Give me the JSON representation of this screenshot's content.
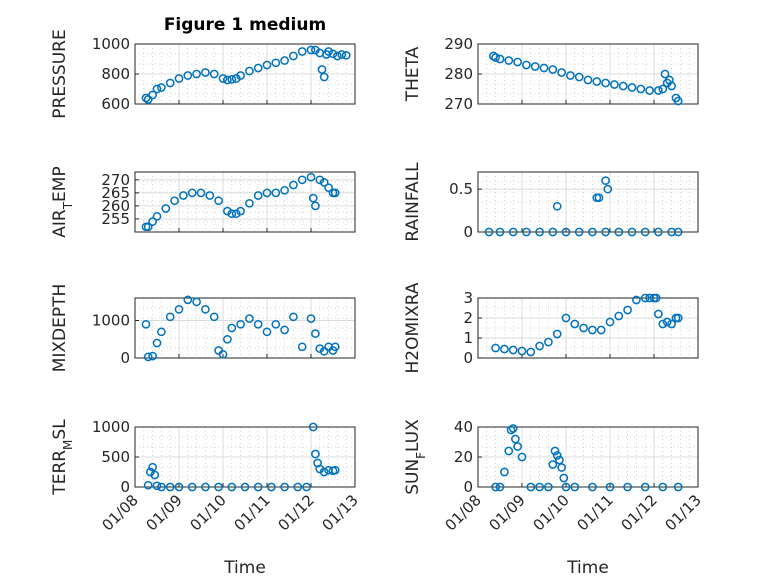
{
  "figure": {
    "title": "Figure 1 medium",
    "xlabel": "Time",
    "x_ticks": [
      "01/08",
      "01/09",
      "01/10",
      "01/11",
      "01/12",
      "01/13"
    ],
    "marker_color": "#0072BD",
    "grid": "on, with minor grid"
  },
  "chart_data": [
    {
      "type": "scatter",
      "ylabel": "PRESSURE",
      "ylim": [
        600,
        1000
      ],
      "y_ticks": [
        "600",
        "800",
        "1000"
      ],
      "series": [
        {
          "x": [
            0.25,
            0.3,
            0.4,
            0.5,
            0.6,
            0.8,
            1.0,
            1.2,
            1.4,
            1.6,
            1.8,
            2.0,
            2.1,
            2.2,
            2.3,
            2.4,
            2.6,
            2.8,
            3.0,
            3.2,
            3.4,
            3.6,
            3.8,
            4.0,
            4.1,
            4.2,
            4.25,
            4.3,
            4.35,
            4.4,
            4.5,
            4.6,
            4.7,
            4.8
          ],
          "y": [
            640,
            630,
            660,
            700,
            710,
            740,
            770,
            790,
            800,
            810,
            800,
            770,
            760,
            765,
            770,
            790,
            820,
            840,
            860,
            875,
            890,
            920,
            950,
            960,
            960,
            940,
            830,
            780,
            930,
            950,
            935,
            920,
            930,
            925
          ]
        }
      ]
    },
    {
      "type": "scatter",
      "ylabel": "THETA",
      "ylim": [
        270,
        290
      ],
      "y_ticks": [
        "270",
        "280",
        "290"
      ],
      "series": [
        {
          "x": [
            0.35,
            0.4,
            0.5,
            0.7,
            0.9,
            1.1,
            1.3,
            1.5,
            1.7,
            1.9,
            2.1,
            2.3,
            2.5,
            2.7,
            2.9,
            3.1,
            3.3,
            3.5,
            3.7,
            3.9,
            4.1,
            4.2,
            4.25,
            4.3,
            4.35,
            4.4,
            4.5,
            4.55
          ],
          "y": [
            286,
            285.5,
            285,
            284.5,
            284,
            283,
            282.5,
            282,
            281.5,
            280.5,
            279.5,
            279,
            278,
            277.5,
            277,
            276.5,
            276,
            275.5,
            275,
            274.5,
            274.5,
            275,
            280,
            277,
            278,
            276,
            272,
            271
          ]
        }
      ]
    },
    {
      "type": "scatter",
      "ylabel": "AIR_TEMP",
      "ylim": [
        250,
        273
      ],
      "y_ticks": [
        "255",
        "260",
        "265",
        "270"
      ],
      "series": [
        {
          "x": [
            0.25,
            0.3,
            0.4,
            0.5,
            0.7,
            0.9,
            1.1,
            1.3,
            1.5,
            1.7,
            1.9,
            2.1,
            2.2,
            2.3,
            2.4,
            2.6,
            2.8,
            3.0,
            3.2,
            3.4,
            3.6,
            3.8,
            4.0,
            4.05,
            4.1,
            4.2,
            4.3,
            4.4,
            4.5,
            4.55
          ],
          "y": [
            252,
            252,
            254,
            256,
            259,
            262,
            264,
            265,
            265,
            264,
            262,
            258,
            257,
            257,
            258,
            261,
            264,
            265,
            265,
            266,
            268,
            270,
            271,
            263,
            260,
            270,
            269,
            267,
            265,
            265
          ]
        }
      ]
    },
    {
      "type": "scatter",
      "ylabel": "RAINFALL",
      "ylim": [
        0,
        0.7
      ],
      "y_ticks": [
        "0",
        "0.5"
      ],
      "series": [
        {
          "x": [
            0.25,
            0.5,
            0.8,
            1.1,
            1.4,
            1.7,
            2.0,
            2.3,
            2.6,
            2.9,
            3.2,
            3.5,
            3.8,
            4.1,
            4.4,
            4.55,
            1.8,
            2.7,
            2.75,
            2.9,
            2.95
          ],
          "y": [
            0,
            0,
            0,
            0,
            0,
            0,
            0,
            0,
            0,
            0,
            0,
            0,
            0,
            0,
            0,
            0,
            0.3,
            0.4,
            0.4,
            0.6,
            0.5
          ]
        }
      ]
    },
    {
      "type": "scatter",
      "ylabel": "MIXDEPTH",
      "ylim": [
        0,
        1600
      ],
      "y_ticks": [
        "0",
        "1000"
      ],
      "series": [
        {
          "x": [
            0.25,
            0.3,
            0.4,
            0.5,
            0.6,
            0.8,
            1.0,
            1.2,
            1.4,
            1.6,
            1.8,
            1.9,
            2.0,
            2.1,
            2.2,
            2.4,
            2.6,
            2.8,
            3.0,
            3.2,
            3.4,
            3.6,
            3.8,
            4.0,
            4.1,
            4.2,
            4.3,
            4.4,
            4.5,
            4.55
          ],
          "y": [
            900,
            30,
            50,
            400,
            700,
            1100,
            1300,
            1550,
            1500,
            1300,
            1100,
            200,
            100,
            500,
            800,
            900,
            1050,
            900,
            700,
            900,
            750,
            1100,
            300,
            1050,
            650,
            250,
            180,
            300,
            200,
            300
          ]
        }
      ]
    },
    {
      "type": "scatter",
      "ylabel": "H2OMIXRA",
      "ylim": [
        0,
        3
      ],
      "y_ticks": [
        "0",
        "1",
        "2",
        "3"
      ],
      "series": [
        {
          "x": [
            0.4,
            0.6,
            0.8,
            1.0,
            1.2,
            1.4,
            1.6,
            1.8,
            2.0,
            2.2,
            2.4,
            2.6,
            2.8,
            3.0,
            3.2,
            3.4,
            3.6,
            3.8,
            3.9,
            4.0,
            4.05,
            4.1,
            4.2,
            4.3,
            4.4,
            4.5,
            4.55
          ],
          "y": [
            0.5,
            0.45,
            0.4,
            0.35,
            0.3,
            0.6,
            0.8,
            1.2,
            2.0,
            1.7,
            1.5,
            1.4,
            1.4,
            1.8,
            2.1,
            2.4,
            2.9,
            3.0,
            3.0,
            3.0,
            3.0,
            2.2,
            1.7,
            1.8,
            1.7,
            2.0,
            2.0
          ]
        }
      ]
    },
    {
      "type": "scatter",
      "ylabel": "TERR_MSL",
      "ylim": [
        0,
        1000
      ],
      "y_ticks": [
        "0",
        "500",
        "1000"
      ],
      "series": [
        {
          "x": [
            0.3,
            0.35,
            0.4,
            0.45,
            0.5,
            0.6,
            0.8,
            1.0,
            1.3,
            1.6,
            1.9,
            2.2,
            2.5,
            2.8,
            3.1,
            3.4,
            3.7,
            3.9,
            4.05,
            4.1,
            4.15,
            4.2,
            4.3,
            4.4,
            4.5,
            4.55
          ],
          "y": [
            30,
            250,
            330,
            200,
            20,
            0,
            0,
            0,
            0,
            0,
            0,
            0,
            0,
            0,
            0,
            0,
            0,
            0,
            1000,
            550,
            400,
            300,
            250,
            280,
            270,
            280
          ]
        }
      ]
    },
    {
      "type": "scatter",
      "ylabel": "SUN_FLUX",
      "ylim": [
        0,
        40
      ],
      "y_ticks": [
        "0",
        "20",
        "40"
      ],
      "series": [
        {
          "x": [
            0.4,
            0.5,
            0.6,
            0.7,
            0.75,
            0.8,
            0.85,
            0.9,
            1.0,
            1.2,
            1.4,
            1.6,
            1.7,
            1.75,
            1.8,
            1.85,
            1.9,
            1.95,
            2.0,
            2.2,
            2.6,
            3.0,
            3.4,
            3.8,
            4.2,
            4.55
          ],
          "y": [
            0,
            0,
            10,
            24,
            38,
            39,
            32,
            27,
            20,
            0,
            0,
            0,
            15,
            24,
            21,
            18,
            13,
            6,
            0,
            0,
            0,
            0,
            0,
            0,
            0,
            0
          ]
        }
      ]
    }
  ]
}
